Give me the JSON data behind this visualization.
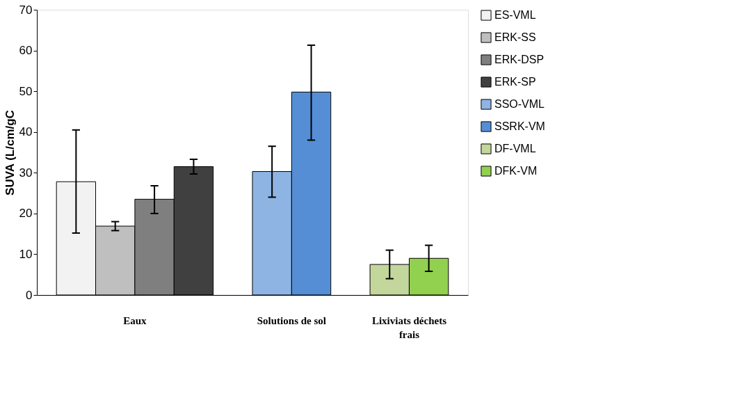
{
  "chart_data": {
    "type": "bar",
    "ylabel": "SUVA (L/cm/gC",
    "categories": [
      "Eaux",
      "Solutions de sol",
      "Lixiviats déchets frais"
    ],
    "ylim": [
      0,
      70
    ],
    "yticks": [
      0,
      10,
      20,
      30,
      40,
      50,
      60,
      70
    ],
    "grid": false,
    "legend": "right",
    "series": [
      {
        "name": "ES-VML",
        "color": "#f2f2f2",
        "values": [
          27.8,
          null,
          null
        ],
        "errors": [
          [
            15.2,
            40.5
          ],
          null,
          null
        ]
      },
      {
        "name": "ERK-SS",
        "color": "#bfbfbf",
        "values": [
          16.9,
          null,
          null
        ],
        "errors": [
          [
            15.8,
            18.0
          ],
          null,
          null
        ]
      },
      {
        "name": "ERK-DSP",
        "color": "#7f7f7f",
        "values": [
          23.5,
          null,
          null
        ],
        "errors": [
          [
            20.0,
            26.8
          ],
          null,
          null
        ]
      },
      {
        "name": "ERK-SP",
        "color": "#404040",
        "values": [
          31.5,
          null,
          null
        ],
        "errors": [
          [
            29.7,
            33.3
          ],
          null,
          null
        ]
      },
      {
        "name": "SSO-VML",
        "color": "#8eb4e3",
        "values": [
          null,
          30.3,
          null
        ],
        "errors": [
          null,
          [
            24.0,
            36.5
          ],
          null
        ]
      },
      {
        "name": "SSRK-VM",
        "color": "#558ed5",
        "values": [
          null,
          49.8,
          null
        ],
        "errors": [
          null,
          [
            38.0,
            61.3
          ],
          null
        ]
      },
      {
        "name": "DF-VML",
        "color": "#c3d69b",
        "values": [
          null,
          null,
          7.5
        ],
        "errors": [
          null,
          null,
          [
            4.0,
            11.0
          ]
        ]
      },
      {
        "name": "DFK-VM",
        "color": "#92d050",
        "values": [
          null,
          null,
          9.0
        ],
        "errors": [
          null,
          null,
          [
            5.8,
            12.2
          ]
        ]
      }
    ]
  }
}
